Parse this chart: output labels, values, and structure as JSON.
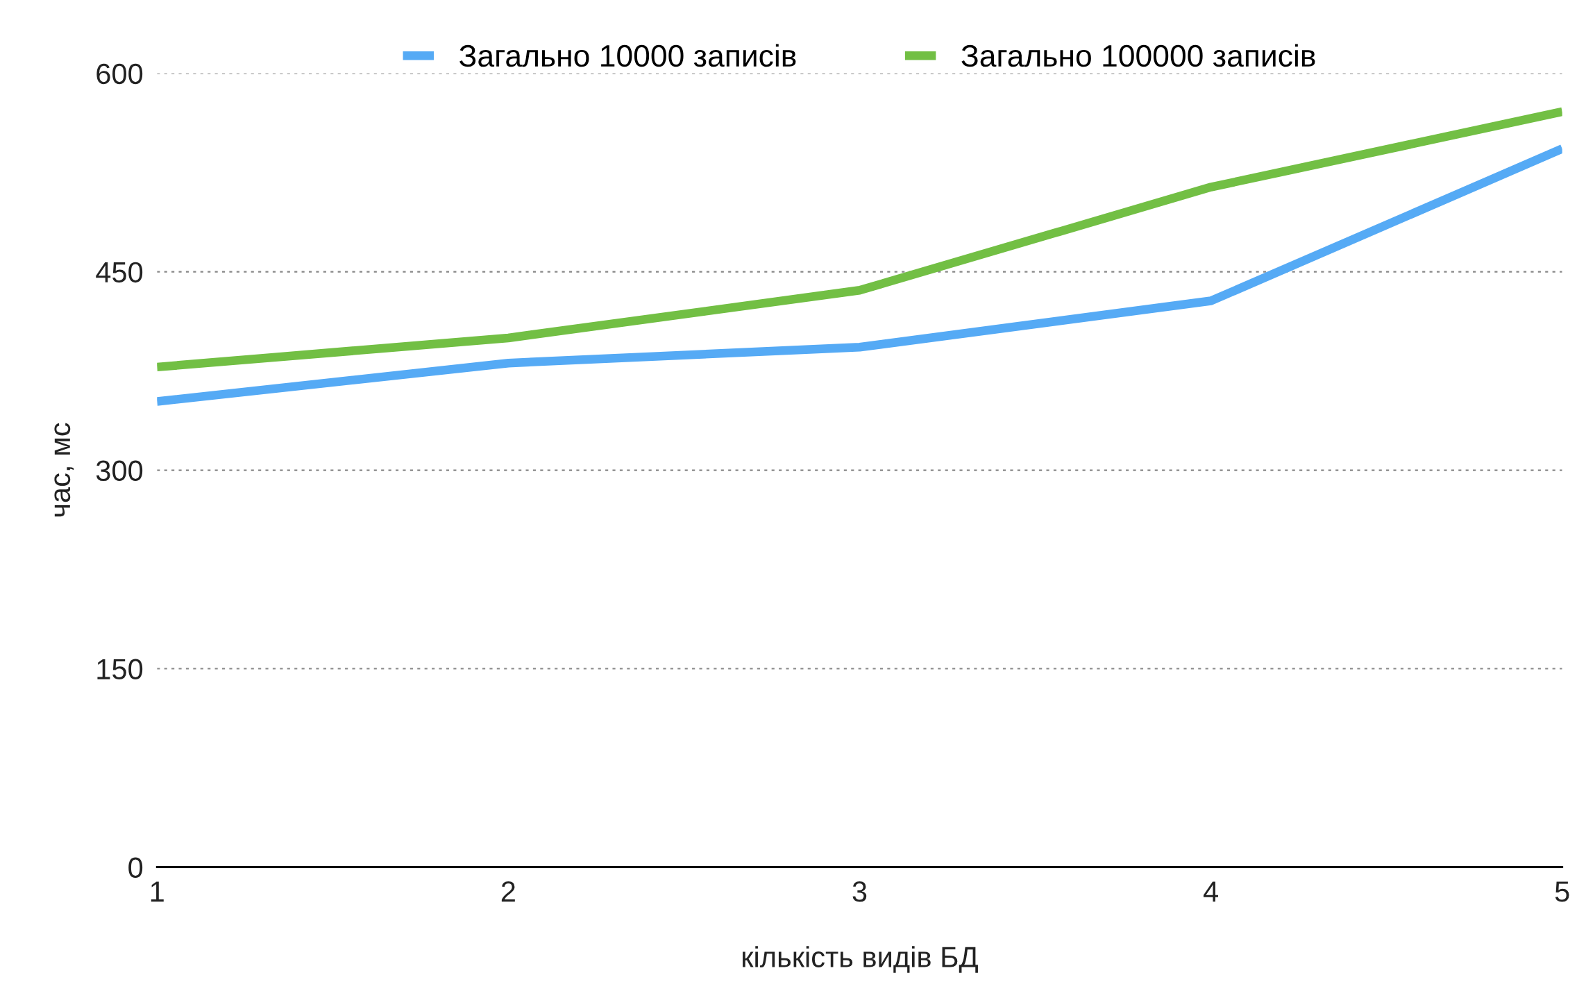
{
  "chart_data": {
    "type": "line",
    "xlabel": "кількість видів БД",
    "ylabel": "час, мс",
    "x": [
      1,
      2,
      3,
      4,
      5
    ],
    "series": [
      {
        "name": "Загально 10000 записів",
        "color": "#55aaf5",
        "values": [
          352,
          381,
          393,
          428,
          543
        ]
      },
      {
        "name": "Загально 100000 записів",
        "color": "#72bf44",
        "values": [
          378,
          400,
          436,
          514,
          571
        ]
      }
    ],
    "xlim": [
      1,
      5
    ],
    "xticks": [
      1,
      2,
      3,
      4,
      5
    ],
    "ylim": [
      0,
      600
    ],
    "yticks": [
      0,
      150,
      300,
      450,
      600
    ],
    "grid": "y",
    "legend": "top",
    "marker": "none",
    "line_style": "solid"
  }
}
